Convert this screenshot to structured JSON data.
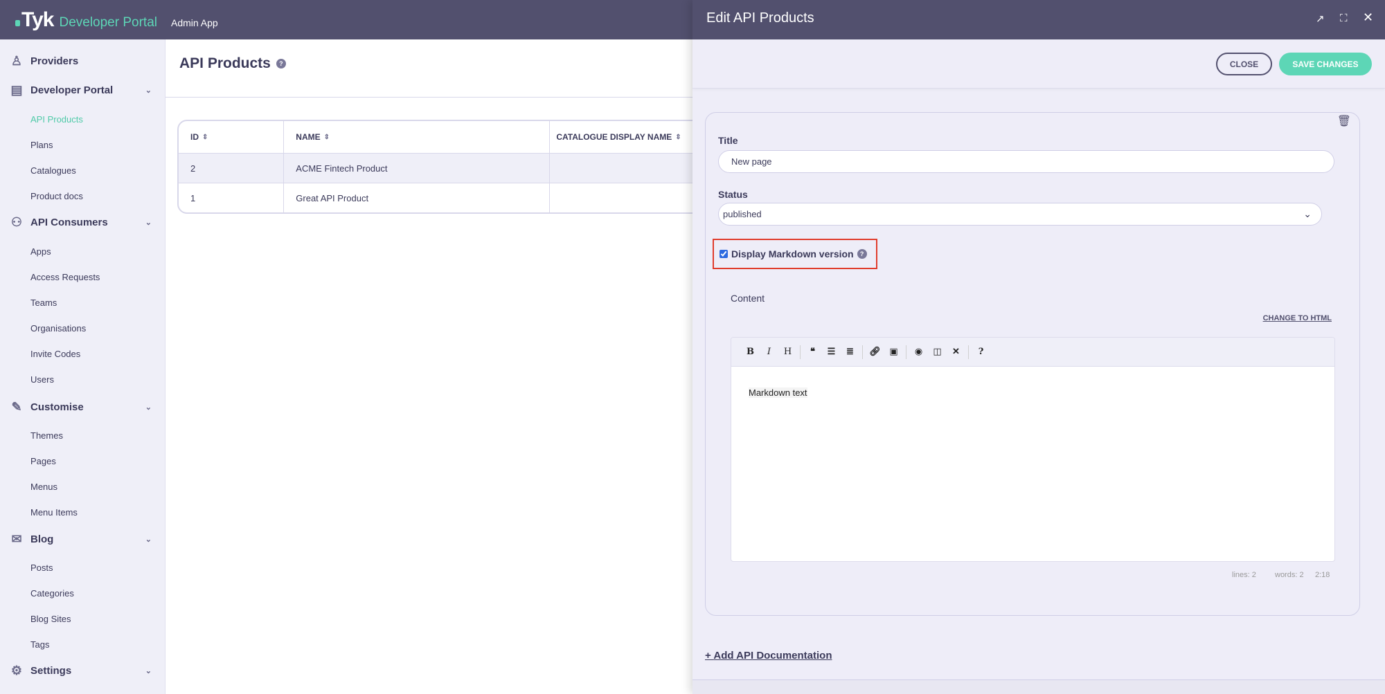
{
  "header": {
    "logo": "Tyk",
    "product": "Developer Portal",
    "app": "Admin App"
  },
  "sidebar": {
    "sections": [
      {
        "label": "Providers",
        "icon": "providers-icon",
        "items": []
      },
      {
        "label": "Developer Portal",
        "icon": "developer-portal-icon",
        "items": [
          "API Products",
          "Plans",
          "Catalogues",
          "Product docs"
        ]
      },
      {
        "label": "API Consumers",
        "icon": "api-consumers-icon",
        "items": [
          "Apps",
          "Access Requests",
          "Teams",
          "Organisations",
          "Invite Codes",
          "Users"
        ]
      },
      {
        "label": "Customise",
        "icon": "brush-icon",
        "items": [
          "Themes",
          "Pages",
          "Menus",
          "Menu Items"
        ]
      },
      {
        "label": "Blog",
        "icon": "blog-icon",
        "items": [
          "Posts",
          "Categories",
          "Blog Sites",
          "Tags"
        ]
      },
      {
        "label": "Settings",
        "icon": "gear-icon",
        "items": []
      }
    ],
    "active": "API Products"
  },
  "main": {
    "title": "API Products",
    "table": {
      "columns": [
        "ID",
        "NAME",
        "CATALOGUE DISPLAY NAME"
      ],
      "rows": [
        [
          "2",
          "ACME Fintech Product",
          ""
        ],
        [
          "1",
          "Great API Product",
          ""
        ]
      ]
    }
  },
  "drawer": {
    "title": "Edit API Products",
    "close_label": "CLOSE",
    "save_label": "SAVE CHANGES",
    "title_label": "Title",
    "title_value": "New page",
    "status_label": "Status",
    "status_value": "published",
    "markdown_label": "Display Markdown version",
    "markdown_checked": true,
    "content_label": "Content",
    "change_html": "CHANGE TO HTML",
    "editor_text": "Markdown text",
    "stats": {
      "lines": "lines: 2",
      "words": "words: 2",
      "cursor": "2:18"
    },
    "add_doc": "Add API Documentation"
  },
  "colors": {
    "header": "#52506e",
    "accent": "#5dd6b6",
    "highlight": "#e03c2c"
  }
}
